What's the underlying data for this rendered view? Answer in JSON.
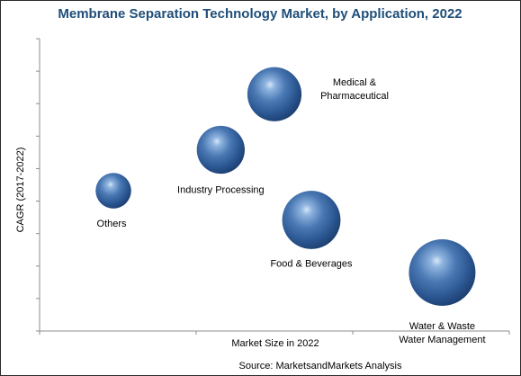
{
  "chart_data": {
    "type": "bubble",
    "title": "Membrane Separation Technology Market, by Application, 2022",
    "xlabel": "Market Size in 2022",
    "ylabel": "CAGR (2017-2022)",
    "source": "Source: MarketsandMarkets Analysis",
    "axis_ticks_labeled": false,
    "grid": false,
    "legend": "none",
    "bubble_color": "#3c6aa8",
    "bubbles": [
      {
        "label": "Others",
        "x": 0.22,
        "y": 0.48,
        "size": 0.25
      },
      {
        "label": "Industry Processing",
        "x": 0.54,
        "y": 0.62,
        "size": 0.55
      },
      {
        "label": "Medical & Pharmaceutical",
        "x": 0.7,
        "y": 0.81,
        "size": 0.7
      },
      {
        "label": "Food & Beverages",
        "x": 0.81,
        "y": 0.38,
        "size": 0.8
      },
      {
        "label": "Water & Waste Water Management",
        "x": 1.2,
        "y": 0.2,
        "size": 1.0
      }
    ]
  }
}
